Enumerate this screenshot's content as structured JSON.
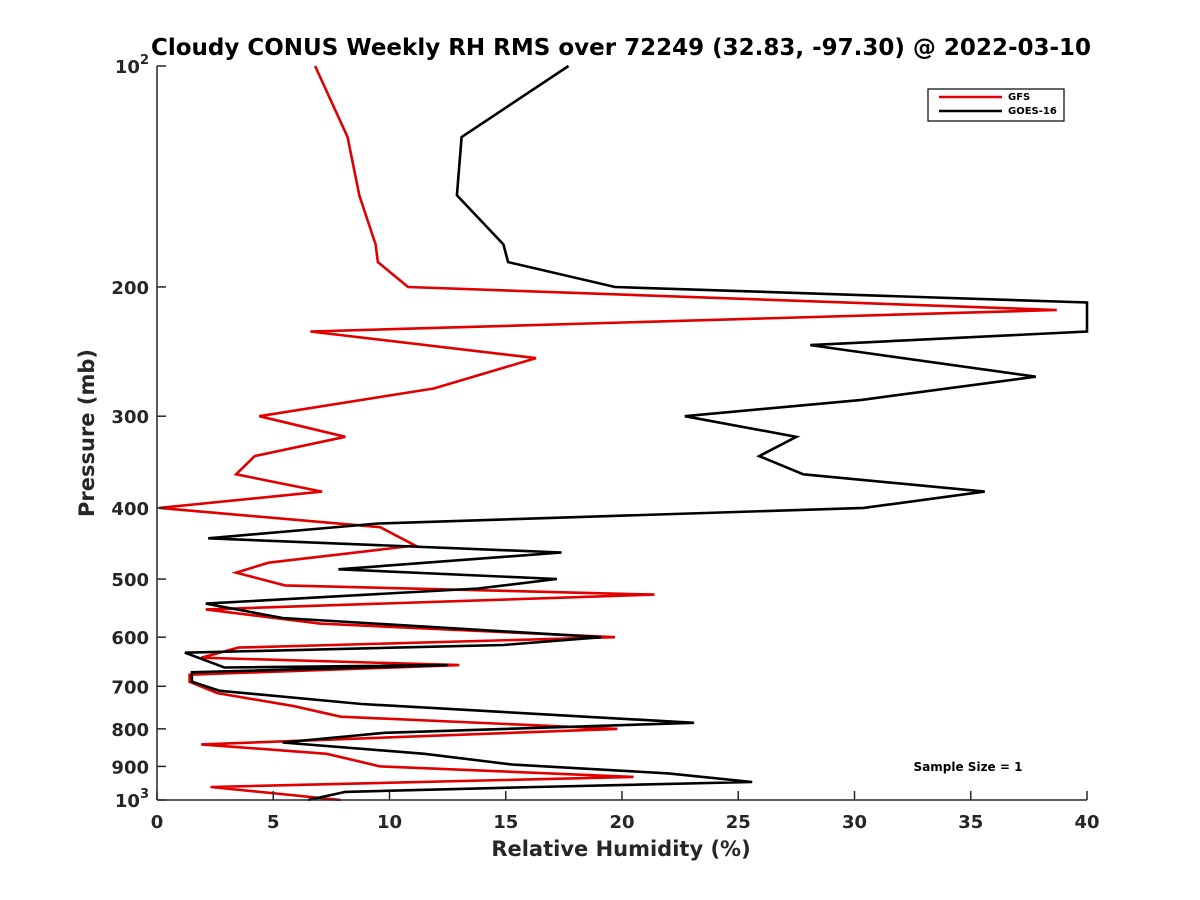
{
  "chart_data": {
    "type": "line",
    "title": "Cloudy CONUS Weekly RH RMS over 72249 (32.83, -97.30) @ 2022-03-10",
    "xlabel": "Relative Humidity (%)",
    "ylabel": "Pressure (mb)",
    "xlim": [
      0,
      40
    ],
    "ylim": [
      100,
      1000
    ],
    "y_scale": "log",
    "y_reversed": true,
    "grid": false,
    "legend_position": "top-right",
    "x_ticks": [
      "0",
      "5",
      "10",
      "15",
      "20",
      "25",
      "30",
      "35",
      "40"
    ],
    "y_ticks": [
      {
        "value": 100,
        "base": "10",
        "exp": "2"
      },
      {
        "value": 200,
        "label": "200"
      },
      {
        "value": 300,
        "label": "300"
      },
      {
        "value": 400,
        "label": "400"
      },
      {
        "value": 500,
        "label": "500"
      },
      {
        "value": 600,
        "label": "600"
      },
      {
        "value": 700,
        "label": "700"
      },
      {
        "value": 800,
        "label": "800"
      },
      {
        "value": 900,
        "label": "900"
      },
      {
        "value": 1000,
        "base": "10",
        "exp": "3"
      }
    ],
    "series": [
      {
        "name": "GFS",
        "color": "#e00000",
        "points": [
          [
            6.8,
            100
          ],
          [
            8.2,
            125
          ],
          [
            8.7,
            150
          ],
          [
            9.4,
            175
          ],
          [
            9.5,
            185
          ],
          [
            10.8,
            200
          ],
          [
            38.7,
            215
          ],
          [
            6.6,
            230
          ],
          [
            16.3,
            250
          ],
          [
            11.9,
            275
          ],
          [
            4.4,
            300
          ],
          [
            8.1,
            320
          ],
          [
            4.2,
            340
          ],
          [
            3.4,
            360
          ],
          [
            7.1,
            380
          ],
          [
            0.1,
            400
          ],
          [
            9.6,
            425
          ],
          [
            11.1,
            450
          ],
          [
            4.8,
            475
          ],
          [
            3.4,
            490
          ],
          [
            5.5,
            510
          ],
          [
            21.4,
            525
          ],
          [
            2.1,
            550
          ],
          [
            7.0,
            575
          ],
          [
            19.7,
            600
          ],
          [
            3.5,
            620
          ],
          [
            1.9,
            640
          ],
          [
            13.0,
            655
          ],
          [
            1.4,
            675
          ],
          [
            1.4,
            690
          ],
          [
            2.6,
            715
          ],
          [
            5.9,
            745
          ],
          [
            7.9,
            770
          ],
          [
            19.8,
            800
          ],
          [
            1.9,
            840
          ],
          [
            7.3,
            865
          ],
          [
            9.6,
            900
          ],
          [
            20.5,
            930
          ],
          [
            2.3,
            960
          ],
          [
            7.9,
            1000
          ]
        ]
      },
      {
        "name": "GOES-16",
        "color": "#000000",
        "points": [
          [
            17.7,
            100
          ],
          [
            13.1,
            125
          ],
          [
            12.9,
            150
          ],
          [
            14.9,
            175
          ],
          [
            15.1,
            185
          ],
          [
            19.7,
            200
          ],
          [
            40.0,
            210
          ],
          [
            40.0,
            230
          ],
          [
            28.1,
            240
          ],
          [
            37.8,
            265
          ],
          [
            30.3,
            285
          ],
          [
            22.7,
            300
          ],
          [
            27.5,
            320
          ],
          [
            25.9,
            340
          ],
          [
            27.8,
            360
          ],
          [
            35.6,
            380
          ],
          [
            30.4,
            400
          ],
          [
            9.5,
            420
          ],
          [
            2.2,
            440
          ],
          [
            17.4,
            460
          ],
          [
            7.8,
            485
          ],
          [
            17.2,
            500
          ],
          [
            13.8,
            515
          ],
          [
            2.1,
            540
          ],
          [
            5.4,
            565
          ],
          [
            19.1,
            600
          ],
          [
            14.9,
            615
          ],
          [
            1.2,
            630
          ],
          [
            2.9,
            660
          ],
          [
            12.5,
            655
          ],
          [
            1.5,
            670
          ],
          [
            1.5,
            690
          ],
          [
            2.7,
            710
          ],
          [
            8.8,
            740
          ],
          [
            23.1,
            785
          ],
          [
            9.8,
            810
          ],
          [
            5.4,
            835
          ],
          [
            11.5,
            865
          ],
          [
            15.3,
            895
          ],
          [
            22.0,
            920
          ],
          [
            25.6,
            945
          ],
          [
            16.3,
            960
          ],
          [
            8.1,
            975
          ],
          [
            6.5,
            1000
          ]
        ]
      }
    ],
    "annotation": "Sample Size = 1"
  }
}
